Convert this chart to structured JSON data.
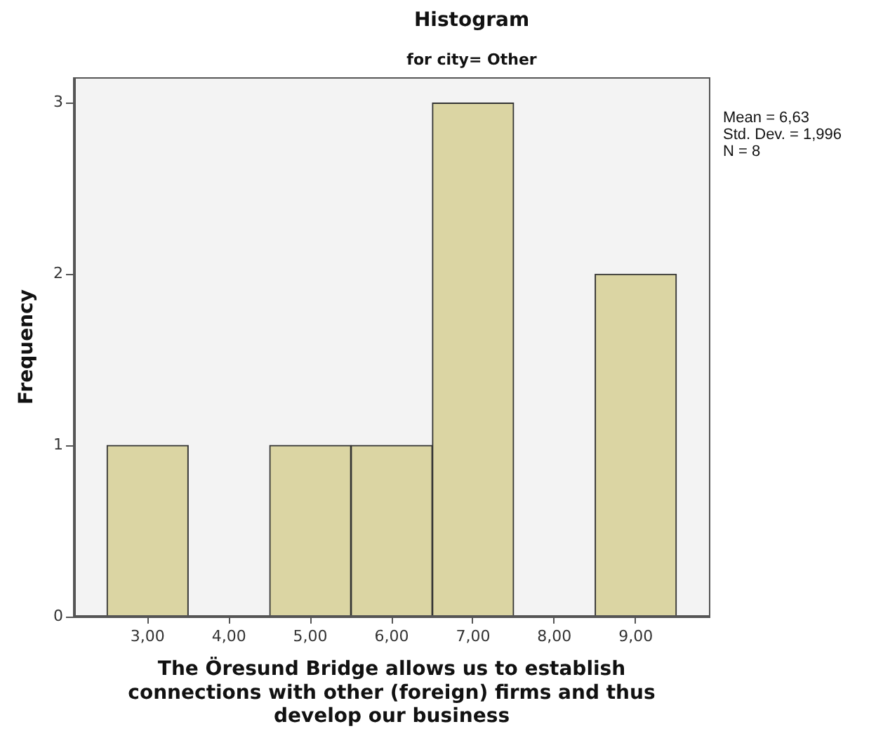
{
  "chart_data": {
    "type": "histogram",
    "title": "Histogram",
    "subtitle": "for city= Other",
    "xlabel": "The Öresund Bridge allows us to establish connections with other (foreign) firms and thus develop our business",
    "ylabel": "Frequency",
    "annotations": [
      "Mean = 6,63",
      "Std. Dev. = 1,996",
      "N = 8"
    ],
    "bins": [
      2.5,
      3.5,
      4.5,
      5.5,
      6.5,
      7.5,
      8.5,
      9.5
    ],
    "values": [
      1,
      0,
      1,
      1,
      3,
      0,
      2
    ],
    "color": "#dbd5a3",
    "xlim": [
      2.1,
      9.9
    ],
    "xticks": [
      {
        "value": 3,
        "label": "3,00"
      },
      {
        "value": 4,
        "label": "4,00"
      },
      {
        "value": 5,
        "label": "5,00"
      },
      {
        "value": 6,
        "label": "6,00"
      },
      {
        "value": 7,
        "label": "7,00"
      },
      {
        "value": 8,
        "label": "8,00"
      },
      {
        "value": 9,
        "label": "9,00"
      }
    ],
    "ylim": [
      0,
      3.15
    ],
    "yticks": [
      0,
      1,
      2,
      3
    ]
  }
}
